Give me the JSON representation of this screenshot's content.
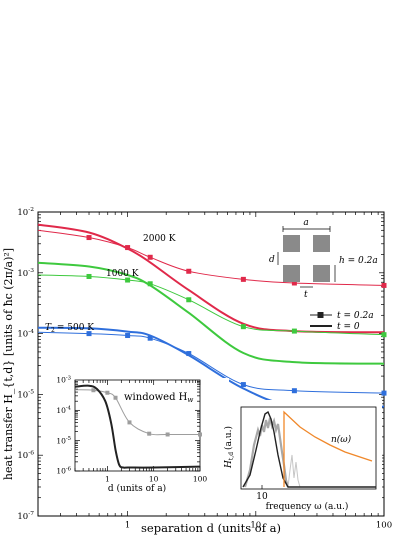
{
  "colors": {
    "red": "#e0294a",
    "green": "#3ec93e",
    "blue": "#2f6fdc",
    "orange": "#f0882a",
    "gray": "#9d9d9d",
    "dark": "#222222"
  },
  "chart_data": [
    {
      "type": "line",
      "xlabel": "separation d (units of a)",
      "ylabel": "heat transfer H_{t,d} [units of ħc (2π/a)²]",
      "xscale": "log",
      "yscale": "log",
      "xlim": [
        0.2,
        100
      ],
      "ylim": [
        1e-07,
        0.01
      ],
      "xticks": [
        {
          "v": 1,
          "label": "1"
        },
        {
          "v": 10,
          "label": "10"
        },
        {
          "v": 100,
          "label": "100"
        }
      ],
      "yticks": [
        {
          "v": 1e-07,
          "label": "10",
          "exp": "-7"
        },
        {
          "v": 1e-06,
          "label": "10",
          "exp": "-6"
        },
        {
          "v": 1e-05,
          "label": "10",
          "exp": "-5"
        },
        {
          "v": 0.0001,
          "label": "10",
          "exp": "-4"
        },
        {
          "v": 0.001,
          "label": "10",
          "exp": "-3"
        },
        {
          "v": 0.01,
          "label": "10",
          "exp": "-2"
        }
      ],
      "series": [
        {
          "name": "2000 K, t = 0.2a",
          "color": "red",
          "style": "marker",
          "x": [
            0.2,
            0.5,
            1,
            1.5,
            3,
            8,
            20,
            100
          ],
          "y": [
            0.005,
            0.0038,
            0.0026,
            0.0018,
            0.00106,
            0.00078,
            0.00068,
            0.00062
          ]
        },
        {
          "name": "2000 K, t = 0",
          "color": "red",
          "style": "thick",
          "x": [
            0.2,
            0.5,
            1,
            1.5,
            3,
            8,
            20,
            100
          ],
          "y": [
            0.0062,
            0.0046,
            0.0025,
            0.00148,
            0.00052,
            0.000145,
            0.00011,
            0.000105
          ]
        },
        {
          "name": "1000 K, t = 0.2a",
          "color": "green",
          "style": "marker",
          "x": [
            0.2,
            0.5,
            1,
            1.5,
            3,
            8,
            20,
            100
          ],
          "y": [
            0.00092,
            0.00087,
            0.00076,
            0.00066,
            0.00036,
            0.00013,
            0.00011,
            9.6e-05
          ]
        },
        {
          "name": "1000 K, t = 0",
          "color": "green",
          "style": "thick",
          "x": [
            0.2,
            0.5,
            1,
            1.5,
            3,
            8,
            20,
            100
          ],
          "y": [
            0.00146,
            0.00127,
            0.00092,
            0.00062,
            0.00022,
            4.8e-05,
            3.4e-05,
            3.2e-05
          ]
        },
        {
          "name": "500 K, t = 0.2a",
          "color": "blue",
          "style": "marker",
          "x": [
            0.2,
            0.5,
            1,
            1.5,
            3,
            8,
            20,
            100
          ],
          "y": [
            0.000105,
            0.0001,
            9.3e-05,
            8.4e-05,
            4.7e-05,
            1.45e-05,
            1.15e-05,
            1.05e-05
          ]
        },
        {
          "name": "500 K, t = 0",
          "color": "blue",
          "style": "thick",
          "x": [
            0.2,
            0.5,
            1,
            1.5,
            3,
            8,
            20,
            100
          ],
          "y": [
            0.000125,
            0.000122,
            0.000108,
            9.3e-05,
            4.4e-05,
            1.25e-05,
            6.5e-06,
            6.3e-06
          ]
        }
      ],
      "annotations": {
        "t2000": "2000 K",
        "t1000": "1000 K",
        "t500": "= 500 K",
        "t500_sym": "T",
        "t500_sub": "2"
      }
    },
    {
      "type": "line",
      "title": "windowed H",
      "title_sub": "w",
      "xlabel": "d (units of a)",
      "xscale": "log",
      "yscale": "log",
      "xlim": [
        0.2,
        100
      ],
      "ylim": [
        1e-06,
        0.001
      ],
      "xticks": [
        {
          "v": 1,
          "label": "1"
        },
        {
          "v": 10,
          "label": "10"
        },
        {
          "v": 100,
          "label": "100"
        }
      ],
      "yticks": [
        {
          "v": 1e-06,
          "label": "10",
          "exp": "-6"
        },
        {
          "v": 1e-05,
          "label": "10",
          "exp": "-5"
        },
        {
          "v": 0.0001,
          "label": "10",
          "exp": "-4"
        },
        {
          "v": 0.001,
          "label": "10",
          "exp": "-3"
        }
      ],
      "series": [
        {
          "name": "t = 0.2a",
          "color": "gray",
          "style": "marker",
          "x": [
            0.2,
            0.5,
            1,
            1.5,
            3,
            8,
            20,
            100
          ],
          "y": [
            0.00048,
            0.00046,
            0.00038,
            0.00026,
            4e-05,
            1.7e-05,
            1.6e-05,
            1.6e-05
          ]
        },
        {
          "name": "t = 0",
          "color": "dark",
          "style": "thick",
          "x": [
            0.2,
            0.4,
            0.6,
            0.9,
            1.2,
            1.5,
            1.8,
            2.2,
            3,
            10,
            100
          ],
          "y": [
            0.0006,
            0.00065,
            0.0005,
            0.0002,
            4e-05,
            5e-06,
            1.6e-06,
            1.3e-06,
            1.3e-06,
            1.3e-06,
            1.4e-06
          ]
        }
      ]
    }
  ],
  "legend": {
    "t02": "t = 0.2a",
    "t0": "t = 0"
  },
  "schematic": {
    "a": "a",
    "d": "d",
    "h": "h = 0.2a",
    "t": "t"
  },
  "spectrum_inset": {
    "ylabel": "H",
    "ylabel_sub": "t,d",
    "yunit": "(a.u.)",
    "xlabel": "frequency ω (a.u.)",
    "xtick": "10",
    "n_label": "n(ω)"
  }
}
